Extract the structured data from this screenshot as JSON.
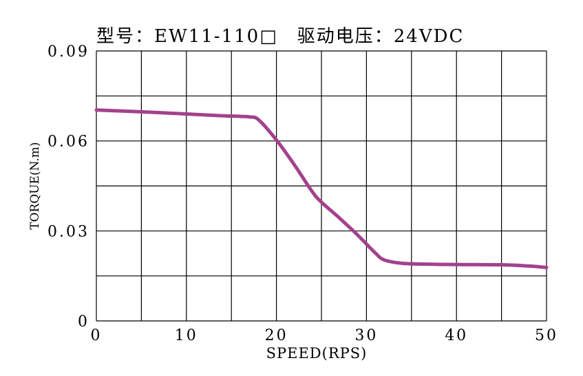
{
  "chart_data": {
    "type": "line",
    "title": "型号：EW11-110□　驱动电压：24VDC",
    "xlabel": "SPEED(RPS)",
    "ylabel": "TORQUE(N.m)",
    "xlim": [
      0,
      50
    ],
    "ylim": [
      0,
      0.09
    ],
    "x_ticks": [
      0,
      10,
      20,
      30,
      40,
      50
    ],
    "x_tick_labels": [
      "0",
      "10",
      "20",
      "30",
      "40",
      "50"
    ],
    "y_ticks": [
      0,
      0.03,
      0.06,
      0.09
    ],
    "y_tick_labels": [
      "0",
      "0.03",
      "0.06",
      "0.09"
    ],
    "x_grid_step": 5,
    "y_grid_step": 0.015,
    "grid": true,
    "series": [
      {
        "color": "#a3418d",
        "x": [
          0,
          5,
          10,
          14,
          16,
          17,
          18,
          20,
          22,
          24,
          25,
          27,
          29,
          31,
          32,
          34,
          37,
          40,
          45,
          48,
          50
        ],
        "y": [
          0.0703,
          0.0697,
          0.069,
          0.0684,
          0.0682,
          0.068,
          0.0671,
          0.0603,
          0.052,
          0.043,
          0.0396,
          0.0343,
          0.0287,
          0.0226,
          0.0203,
          0.0192,
          0.0189,
          0.0188,
          0.0187,
          0.0183,
          0.0178
        ]
      }
    ]
  }
}
